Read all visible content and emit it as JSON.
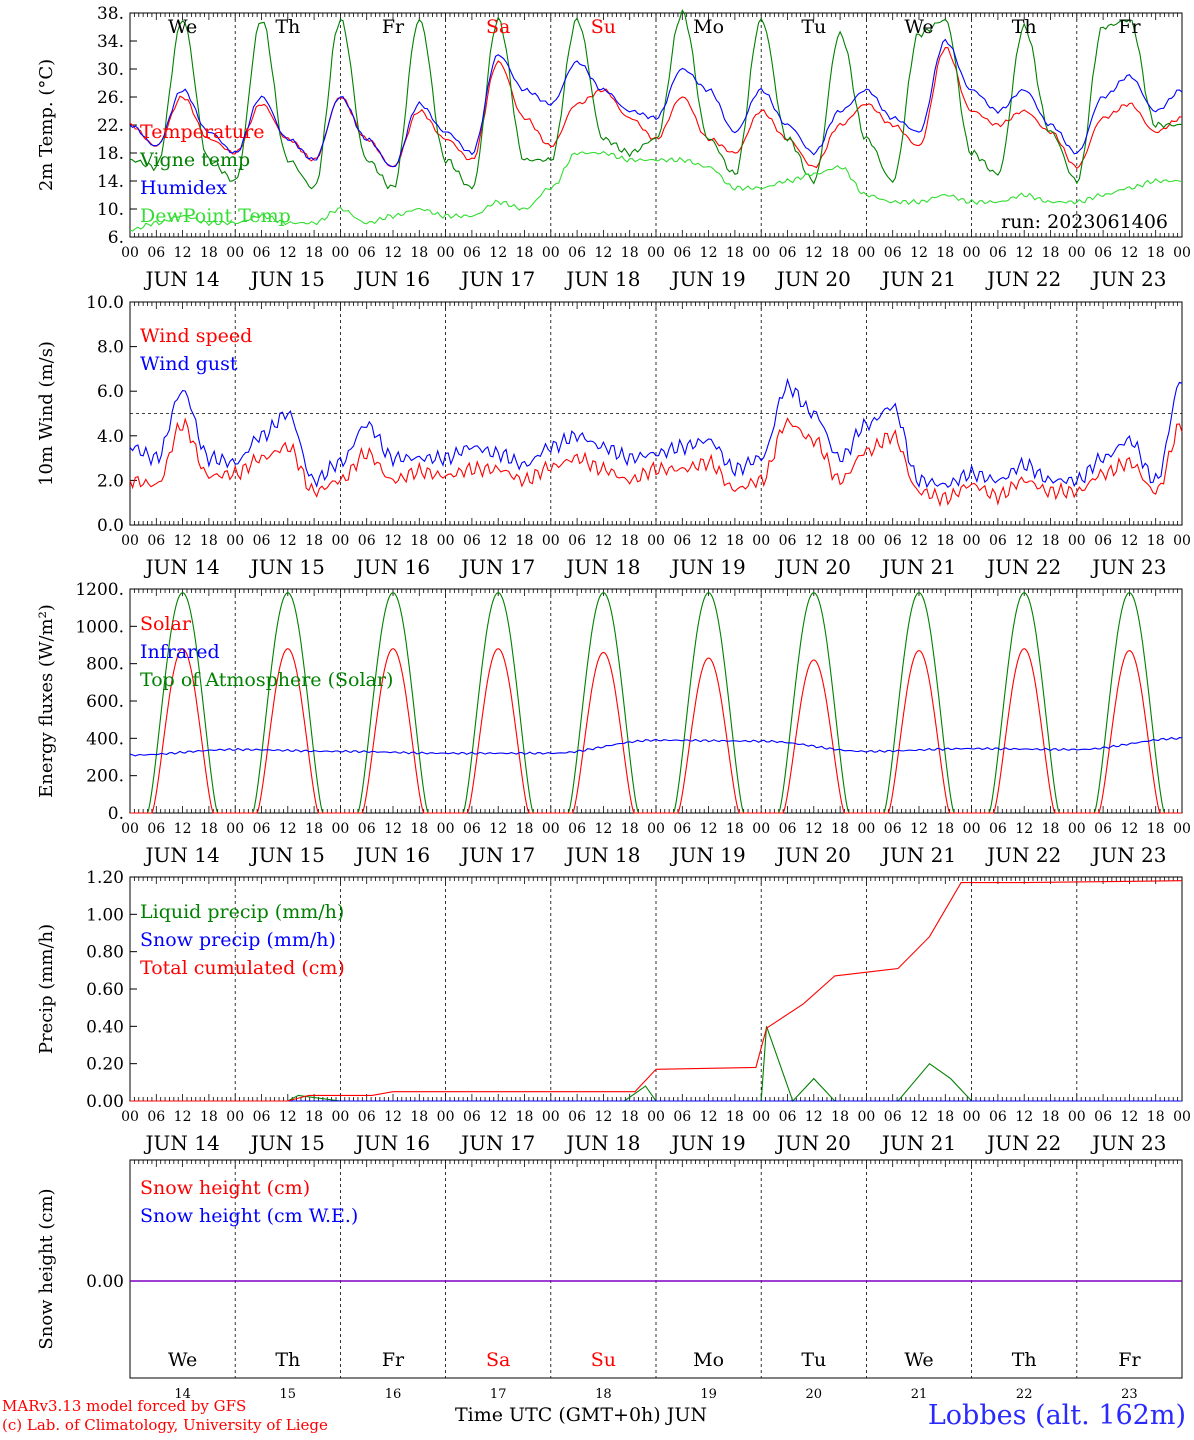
{
  "run_label": "run: 2023061406",
  "credits": [
    "MARv3.13 model forced by GFS",
    "(c) Lab. of Climatology, University of Liege"
  ],
  "footer": {
    "xlabel": "Time UTC (GMT+0h) JUN",
    "location": "Lobbes (alt. 162m)"
  },
  "colors": {
    "red": "#ff0000",
    "green": "#008000",
    "blue": "#0000ff",
    "lightgreen": "#33dd33",
    "purple": "#7f00bf"
  },
  "hour_ticks": [
    "00",
    "06",
    "12",
    "18"
  ],
  "day_labels": [
    "JUN 14",
    "JUN 15",
    "JUN 16",
    "JUN 17",
    "JUN 18",
    "JUN 19",
    "JUN 20",
    "JUN 21",
    "JUN 22",
    "JUN 23"
  ],
  "weekdays": [
    {
      "label": "We",
      "color": "#000000"
    },
    {
      "label": "Th",
      "color": "#000000"
    },
    {
      "label": "Fr",
      "color": "#000000"
    },
    {
      "label": "Sa",
      "color": "#ff0000"
    },
    {
      "label": "Su",
      "color": "#ff0000"
    },
    {
      "label": "Mo",
      "color": "#000000"
    },
    {
      "label": "Tu",
      "color": "#000000"
    },
    {
      "label": "We",
      "color": "#000000"
    },
    {
      "label": "Th",
      "color": "#000000"
    },
    {
      "label": "Fr",
      "color": "#000000"
    }
  ],
  "day_numbers": [
    "14",
    "15",
    "16",
    "17",
    "18",
    "19",
    "20",
    "21",
    "22",
    "23"
  ],
  "chart_data": [
    {
      "type": "line",
      "ylabel": "2m Temp. (°C)",
      "ylim": [
        6,
        38
      ],
      "yticks": [
        "6.",
        "10.",
        "14.",
        "18.",
        "22.",
        "26.",
        "30.",
        "34.",
        "38."
      ],
      "days": [
        "We",
        "Th",
        "Fr",
        "Sa",
        "Su",
        "Mo",
        "Tu",
        "We",
        "Th",
        "Fr"
      ],
      "series": [
        {
          "name": "Temperature",
          "color": "#ff0000",
          "x": [
            0,
            0.25,
            0.5,
            0.75,
            1,
            1.25,
            1.5,
            1.75,
            2,
            2.25,
            2.5,
            2.75,
            3,
            3.25,
            3.5,
            3.75,
            4,
            4.25,
            4.5,
            4.75,
            5,
            5.25,
            5.5,
            5.75,
            6,
            6.25,
            6.5,
            6.75,
            7,
            7.25,
            7.5,
            7.75,
            8,
            8.25,
            8.5,
            8.75,
            9,
            9.25,
            9.5,
            9.75,
            10
          ],
          "y": [
            22,
            19,
            26,
            20,
            18,
            25,
            20,
            17,
            26,
            20,
            16,
            24,
            20,
            17,
            31,
            23,
            19,
            25,
            27,
            23,
            20,
            26,
            20,
            18,
            24,
            20,
            16,
            22,
            25,
            22,
            19,
            33,
            24,
            22,
            24,
            21,
            16,
            23,
            25,
            21,
            23
          ]
        },
        {
          "name": "Vigne temp",
          "color": "#008000",
          "x": [
            0,
            0.25,
            0.5,
            0.75,
            1,
            1.25,
            1.5,
            1.75,
            2,
            2.25,
            2.5,
            2.75,
            3,
            3.25,
            3.5,
            3.75,
            4,
            4.25,
            4.5,
            4.75,
            5,
            5.25,
            5.5,
            5.75,
            6,
            6.25,
            6.5,
            6.75,
            7,
            7.25,
            7.5,
            7.75,
            8,
            8.25,
            8.5,
            8.75,
            9,
            9.25,
            9.5,
            9.75,
            10
          ],
          "y": [
            17,
            16,
            37,
            17,
            14,
            37,
            17,
            13,
            37,
            17,
            13,
            37,
            17,
            13,
            37,
            17,
            17,
            37,
            20,
            18,
            20,
            38,
            20,
            15,
            37,
            20,
            14,
            35,
            20,
            14,
            35,
            37,
            18,
            15,
            36,
            21,
            14,
            36,
            37,
            22,
            22
          ]
        },
        {
          "name": "Humidex",
          "color": "#0000ff",
          "x": [
            0,
            0.25,
            0.5,
            0.75,
            1,
            1.25,
            1.5,
            1.75,
            2,
            2.25,
            2.5,
            2.75,
            3,
            3.25,
            3.5,
            3.75,
            4,
            4.25,
            4.5,
            4.75,
            5,
            5.25,
            5.5,
            5.75,
            6,
            6.25,
            6.5,
            6.75,
            7,
            7.25,
            7.5,
            7.75,
            8,
            8.25,
            8.5,
            8.75,
            9,
            9.25,
            9.5,
            9.75,
            10
          ],
          "y": [
            22,
            19,
            27,
            21,
            18,
            26,
            20,
            17,
            26,
            20,
            16,
            25,
            21,
            18,
            32,
            27,
            25,
            31,
            27,
            24,
            23,
            30,
            27,
            21,
            27,
            22,
            18,
            24,
            27,
            23,
            21,
            34,
            27,
            24,
            27,
            22,
            18,
            26,
            29,
            24,
            27
          ]
        },
        {
          "name": "DewPoint Temp",
          "color": "#33dd33",
          "x": [
            0,
            0.25,
            0.5,
            0.75,
            1,
            1.25,
            1.5,
            1.75,
            2,
            2.25,
            2.5,
            2.75,
            3,
            3.25,
            3.5,
            3.75,
            4,
            4.25,
            4.5,
            4.75,
            5,
            5.25,
            5.5,
            5.75,
            6,
            6.25,
            6.5,
            6.75,
            7,
            7.25,
            7.5,
            7.75,
            8,
            8.25,
            8.5,
            8.75,
            9,
            9.25,
            9.5,
            9.75,
            10
          ],
          "y": [
            7,
            8,
            9,
            8,
            8,
            9,
            8,
            8,
            10,
            8,
            9,
            10,
            9,
            9,
            11,
            10,
            13,
            18,
            18,
            17,
            17,
            17,
            16,
            13,
            13,
            14,
            15,
            16,
            12,
            11,
            11,
            12,
            11,
            11,
            12,
            11,
            11,
            12,
            13,
            14,
            14
          ]
        }
      ]
    },
    {
      "type": "line",
      "ylabel": "10m Wind (m/s)",
      "ylim": [
        0,
        10
      ],
      "yticks": [
        "0.0",
        "2.0",
        "4.0",
        "6.0",
        "8.0",
        "10.0"
      ],
      "ref_line": 5,
      "series": [
        {
          "name": "Wind speed",
          "color": "#ff0000",
          "x": [
            0,
            0.25,
            0.5,
            0.75,
            1,
            1.25,
            1.5,
            1.75,
            2,
            2.25,
            2.5,
            2.75,
            3,
            3.25,
            3.5,
            3.75,
            4,
            4.25,
            4.5,
            4.75,
            5,
            5.25,
            5.5,
            5.75,
            6,
            6.25,
            6.5,
            6.75,
            7,
            7.25,
            7.5,
            7.75,
            8,
            8.25,
            8.5,
            8.75,
            9,
            9.25,
            9.5,
            9.75,
            10
          ],
          "y": [
            2.0,
            1.8,
            4.5,
            2.2,
            2.3,
            3.0,
            3.5,
            1.5,
            2.0,
            3.2,
            2.0,
            2.4,
            2.2,
            2.5,
            2.5,
            2.0,
            2.6,
            3.0,
            2.5,
            2.0,
            2.5,
            2.5,
            2.8,
            1.6,
            2.0,
            4.6,
            3.8,
            2.0,
            3.3,
            4.0,
            1.5,
            1.2,
            1.8,
            1.3,
            2.0,
            1.5,
            1.5,
            2.3,
            2.8,
            1.5,
            4.5
          ]
        },
        {
          "name": "Wind gust",
          "color": "#0000ff",
          "x": [
            0,
            0.25,
            0.5,
            0.75,
            1,
            1.25,
            1.5,
            1.75,
            2,
            2.25,
            2.5,
            2.75,
            3,
            3.25,
            3.5,
            3.75,
            4,
            4.25,
            4.5,
            4.75,
            5,
            5.25,
            5.5,
            5.75,
            6,
            6.25,
            6.5,
            6.75,
            7,
            7.25,
            7.5,
            7.75,
            8,
            8.25,
            8.5,
            8.75,
            9,
            9.25,
            9.5,
            9.75,
            10
          ],
          "y": [
            3.5,
            3.0,
            6.0,
            3.0,
            2.8,
            4.0,
            5.0,
            2.0,
            2.8,
            4.5,
            3.0,
            3.0,
            3.0,
            3.5,
            3.2,
            2.7,
            3.5,
            4.0,
            3.5,
            3.0,
            3.2,
            3.5,
            3.8,
            2.5,
            3.0,
            6.2,
            5.0,
            3.0,
            4.5,
            5.3,
            2.0,
            1.8,
            2.3,
            2.0,
            2.7,
            2.0,
            2.0,
            3.0,
            3.8,
            2.0,
            6.5
          ]
        }
      ]
    },
    {
      "type": "line",
      "ylabel": "Energy fluxes (W/m²)",
      "ylim": [
        0,
        1200
      ],
      "yticks": [
        "0.",
        "200.",
        "400.",
        "600.",
        "800.",
        "1000.",
        "1200."
      ],
      "series": [
        {
          "name": "Solar",
          "color": "#ff0000",
          "daily_peaks": [
            880,
            880,
            880,
            880,
            860,
            830,
            820,
            870,
            880,
            870
          ]
        },
        {
          "name": "Infrared",
          "color": "#0000ff",
          "x": [
            0,
            1,
            2,
            3,
            4,
            5,
            6,
            7,
            8,
            9,
            10
          ],
          "y": [
            310,
            340,
            330,
            320,
            320,
            390,
            385,
            330,
            345,
            340,
            400
          ]
        },
        {
          "name": "Top of Atmosphere (Solar)",
          "color": "#008000",
          "daily_peaks": [
            1180,
            1180,
            1180,
            1180,
            1180,
            1180,
            1180,
            1180,
            1180,
            1180
          ]
        }
      ]
    },
    {
      "type": "line",
      "ylabel": "Precip (mm/h)",
      "ylim": [
        0,
        1.2
      ],
      "yticks": [
        "0.00",
        "0.20",
        "0.40",
        "0.60",
        "0.80",
        "1.00",
        "1.20"
      ],
      "series": [
        {
          "name": "Liquid precip (mm/h)",
          "color": "#008000",
          "x": [
            0,
            1.5,
            1.6,
            2,
            4.7,
            4.9,
            5,
            6,
            6.05,
            6.3,
            6.5,
            6.7,
            7.3,
            7.6,
            7.8,
            8,
            10
          ],
          "y": [
            0,
            0,
            0.03,
            0,
            0,
            0.08,
            0,
            0,
            0.4,
            0,
            0.12,
            0,
            0,
            0.2,
            0.12,
            0,
            0
          ]
        },
        {
          "name": "Snow precip (mm/h)",
          "color": "#0000ff",
          "x": [
            0,
            10
          ],
          "y": [
            0,
            0
          ]
        },
        {
          "name": "Total cumulated (cm)",
          "color": "#ff0000",
          "x": [
            0,
            1.5,
            1.7,
            2.3,
            2.5,
            4.8,
            5,
            5.95,
            6.05,
            6.4,
            6.7,
            7.3,
            7.6,
            7.9,
            8.5,
            10
          ],
          "y": [
            0,
            0,
            0.03,
            0.03,
            0.05,
            0.05,
            0.17,
            0.18,
            0.39,
            0.52,
            0.67,
            0.71,
            0.88,
            1.17,
            1.17,
            1.18
          ]
        }
      ]
    },
    {
      "type": "line",
      "ylabel": "Snow height (cm)",
      "ylim": [
        -1,
        1
      ],
      "yticks": [
        "0.00"
      ],
      "series": [
        {
          "name": "Snow height (cm)",
          "color": "#ff0000",
          "x": [
            0,
            10
          ],
          "y": [
            0,
            0
          ]
        },
        {
          "name": "Snow height (cm W.E.)",
          "color": "#0000ff",
          "x": [
            0,
            10
          ],
          "y": [
            0,
            0
          ]
        }
      ]
    }
  ]
}
